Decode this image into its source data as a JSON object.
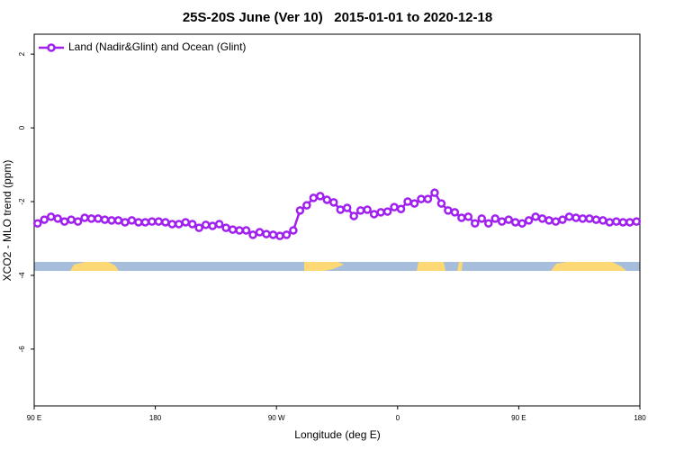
{
  "chart_data": {
    "type": "line",
    "title": "25S-20S June (Ver 10)   2015-01-01 to 2020-12-18",
    "x_label": "Longitude (deg E)",
    "y_label": "XCO2 - MLO trend (ppm)",
    "xlim": [
      90,
      540
    ],
    "ylim": [
      -7.54,
      2.54
    ],
    "xticks": [
      {
        "value": 90,
        "label": "90 E"
      },
      {
        "value": 180,
        "label": "180"
      },
      {
        "value": 270,
        "label": "90 W"
      },
      {
        "value": 360,
        "label": "0"
      },
      {
        "value": 450,
        "label": "90 E"
      },
      {
        "value": 540,
        "label": "180"
      }
    ],
    "yticks": [
      2,
      0,
      -2,
      -4,
      -6
    ],
    "legend": "top-left",
    "x": [
      92.5,
      97.5,
      102.5,
      107.5,
      112.5,
      117.5,
      122.5,
      127.5,
      132.5,
      137.5,
      142.5,
      147.5,
      152.5,
      157.5,
      162.5,
      167.5,
      172.5,
      177.5,
      182.5,
      187.5,
      192.5,
      197.5,
      202.5,
      207.5,
      212.5,
      217.5,
      222.5,
      227.5,
      232.5,
      237.5,
      242.5,
      247.5,
      252.5,
      257.5,
      262.5,
      267.5,
      272.5,
      277.5,
      282.5,
      287.5,
      292.5,
      297.5,
      302.5,
      307.5,
      312.5,
      317.5,
      322.5,
      327.5,
      332.5,
      337.5,
      342.5,
      347.5,
      352.5,
      357.5,
      362.5,
      367.5,
      372.5,
      377.5,
      382.5,
      387.5,
      392.5,
      397.5,
      402.5,
      407.5,
      412.5,
      417.5,
      422.5,
      427.5,
      432.5,
      437.5,
      442.5,
      447.5,
      452.5,
      457.5,
      462.5,
      467.5,
      472.5,
      477.5,
      482.5,
      487.5,
      492.5,
      497.5,
      502.5,
      507.5,
      512.5,
      517.5,
      522.5,
      527.5,
      532.5,
      537.5
    ],
    "series": [
      {
        "name": "Land (Nadir&Glint) and Ocean (Glint)",
        "color": "#a020f0",
        "values": [
          -2.59,
          -2.49,
          -2.41,
          -2.46,
          -2.54,
          -2.49,
          -2.54,
          -2.44,
          -2.46,
          -2.46,
          -2.49,
          -2.51,
          -2.51,
          -2.56,
          -2.51,
          -2.56,
          -2.56,
          -2.54,
          -2.54,
          -2.56,
          -2.61,
          -2.61,
          -2.56,
          -2.61,
          -2.71,
          -2.63,
          -2.66,
          -2.61,
          -2.71,
          -2.76,
          -2.78,
          -2.78,
          -2.9,
          -2.83,
          -2.88,
          -2.9,
          -2.93,
          -2.9,
          -2.78,
          -2.24,
          -2.1,
          -1.9,
          -1.85,
          -1.95,
          -2.02,
          -2.22,
          -2.17,
          -2.39,
          -2.24,
          -2.22,
          -2.34,
          -2.29,
          -2.27,
          -2.15,
          -2.2,
          -2.0,
          -2.05,
          -1.93,
          -1.93,
          -1.76,
          -2.05,
          -2.24,
          -2.29,
          -2.44,
          -2.41,
          -2.59,
          -2.46,
          -2.59,
          -2.46,
          -2.54,
          -2.49,
          -2.56,
          -2.59,
          -2.51,
          -2.41,
          -2.46,
          -2.51,
          -2.54,
          -2.49,
          -2.41,
          -2.44,
          -2.46,
          -2.46,
          -2.49,
          -2.51,
          -2.56,
          -2.54,
          -2.56,
          -2.56,
          -2.54
        ]
      }
    ]
  }
}
